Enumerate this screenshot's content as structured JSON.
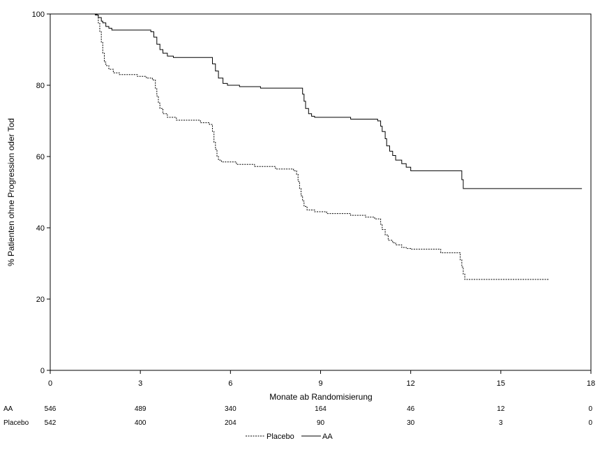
{
  "chart_data": {
    "type": "line",
    "title": "",
    "xlabel": "Monate ab Randomisierung",
    "ylabel": "% Patienten ohne Progression oder Tod",
    "xlim": [
      0,
      18
    ],
    "ylim": [
      0,
      100
    ],
    "x_ticks": [
      0,
      3,
      6,
      9,
      12,
      15,
      18
    ],
    "y_ticks": [
      0,
      20,
      40,
      60,
      80,
      100
    ],
    "grid": false,
    "legend_position": "bottom-center",
    "series": [
      {
        "name": "AA",
        "line_style": "solid",
        "points": [
          [
            0,
            100
          ],
          [
            1.5,
            99.7
          ],
          [
            1.6,
            99
          ],
          [
            1.7,
            98
          ],
          [
            1.75,
            97.5
          ],
          [
            1.85,
            96.5
          ],
          [
            1.95,
            96
          ],
          [
            2.05,
            95.5
          ],
          [
            3.35,
            95
          ],
          [
            3.45,
            93.5
          ],
          [
            3.55,
            91.5
          ],
          [
            3.65,
            90
          ],
          [
            3.75,
            89
          ],
          [
            3.9,
            88.2
          ],
          [
            4.1,
            87.8
          ],
          [
            5.3,
            87.8
          ],
          [
            5.4,
            86
          ],
          [
            5.5,
            84
          ],
          [
            5.6,
            82
          ],
          [
            5.75,
            80.5
          ],
          [
            5.9,
            80
          ],
          [
            6.3,
            79.6
          ],
          [
            7.0,
            79.2
          ],
          [
            8.3,
            79.2
          ],
          [
            8.4,
            77.5
          ],
          [
            8.45,
            75.5
          ],
          [
            8.5,
            73.5
          ],
          [
            8.6,
            72
          ],
          [
            8.7,
            71.3
          ],
          [
            8.8,
            71
          ],
          [
            9.8,
            71
          ],
          [
            10.0,
            70.5
          ],
          [
            10.9,
            70
          ],
          [
            11.0,
            68.5
          ],
          [
            11.05,
            67
          ],
          [
            11.15,
            65
          ],
          [
            11.2,
            63
          ],
          [
            11.3,
            61.5
          ],
          [
            11.4,
            60.3
          ],
          [
            11.5,
            59
          ],
          [
            11.7,
            58
          ],
          [
            11.85,
            57
          ],
          [
            12.0,
            56
          ],
          [
            13.65,
            56
          ],
          [
            13.7,
            53.5
          ],
          [
            13.75,
            51
          ],
          [
            17.7,
            51
          ]
        ]
      },
      {
        "name": "Placebo",
        "line_style": "dashed",
        "points": [
          [
            0,
            100
          ],
          [
            1.5,
            99.8
          ],
          [
            1.6,
            97.5
          ],
          [
            1.65,
            95
          ],
          [
            1.7,
            92
          ],
          [
            1.75,
            89
          ],
          [
            1.8,
            86.5
          ],
          [
            1.85,
            85.5
          ],
          [
            1.95,
            84.5
          ],
          [
            2.1,
            83.5
          ],
          [
            2.3,
            83
          ],
          [
            2.9,
            82.5
          ],
          [
            3.2,
            82
          ],
          [
            3.4,
            81.5
          ],
          [
            3.5,
            79
          ],
          [
            3.55,
            77
          ],
          [
            3.6,
            75
          ],
          [
            3.65,
            73.5
          ],
          [
            3.75,
            72
          ],
          [
            3.9,
            71
          ],
          [
            4.2,
            70.2
          ],
          [
            5.0,
            69.5
          ],
          [
            5.3,
            69
          ],
          [
            5.4,
            67
          ],
          [
            5.45,
            64
          ],
          [
            5.5,
            62
          ],
          [
            5.55,
            60
          ],
          [
            5.6,
            59
          ],
          [
            5.7,
            58.5
          ],
          [
            6.2,
            57.8
          ],
          [
            6.8,
            57.2
          ],
          [
            7.5,
            56.5
          ],
          [
            8.1,
            56
          ],
          [
            8.2,
            55
          ],
          [
            8.25,
            53
          ],
          [
            8.3,
            51
          ],
          [
            8.35,
            49
          ],
          [
            8.4,
            47.5
          ],
          [
            8.45,
            46
          ],
          [
            8.55,
            45
          ],
          [
            8.8,
            44.5
          ],
          [
            9.2,
            44
          ],
          [
            10.0,
            43.5
          ],
          [
            10.5,
            43
          ],
          [
            10.8,
            42.5
          ],
          [
            11.0,
            41
          ],
          [
            11.05,
            39.5
          ],
          [
            11.15,
            38
          ],
          [
            11.25,
            36.5
          ],
          [
            11.4,
            35.8
          ],
          [
            11.5,
            35.2
          ],
          [
            11.7,
            34.5
          ],
          [
            11.85,
            34.2
          ],
          [
            12.0,
            34
          ],
          [
            12.7,
            34
          ],
          [
            13.0,
            33
          ],
          [
            13.6,
            33
          ],
          [
            13.65,
            31
          ],
          [
            13.7,
            29
          ],
          [
            13.75,
            27
          ],
          [
            13.8,
            25.5
          ],
          [
            16.6,
            25.5
          ]
        ]
      }
    ],
    "risk_table": {
      "times": [
        0,
        3,
        6,
        9,
        12,
        15,
        18
      ],
      "rows": [
        {
          "label": "AA",
          "counts": [
            546,
            489,
            340,
            164,
            46,
            12,
            0
          ]
        },
        {
          "label": "Placebo",
          "counts": [
            542,
            400,
            204,
            90,
            30,
            3,
            0
          ]
        }
      ]
    },
    "legend": [
      {
        "label": "Placebo",
        "line_style": "dashed"
      },
      {
        "label": "AA",
        "line_style": "solid"
      }
    ]
  }
}
